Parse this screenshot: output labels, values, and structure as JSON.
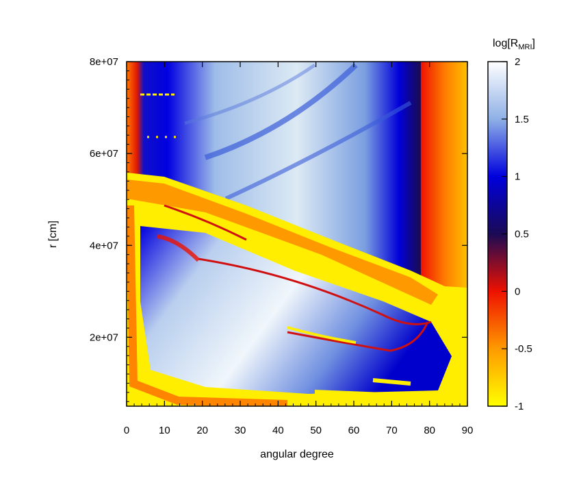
{
  "chart_data": {
    "type": "heatmap",
    "title": "",
    "xlabel": "angular degree",
    "ylabel": "r [cm]",
    "xlim": [
      0,
      90
    ],
    "ylim": [
      5000000,
      80000000
    ],
    "x_ticks": [
      0,
      10,
      20,
      30,
      40,
      50,
      60,
      70,
      80,
      90
    ],
    "x_tick_labels": [
      "0",
      "10",
      "20",
      "30",
      "40",
      "50",
      "60",
      "70",
      "80",
      "90"
    ],
    "y_ticks": [
      20000000,
      40000000,
      60000000,
      80000000
    ],
    "y_tick_labels": [
      "2e+07",
      "4e+07",
      "6e+07",
      "8e+07"
    ],
    "colorbar": {
      "label_main": "log[R",
      "label_sub": "MRI",
      "label_end": "]",
      "range": [
        -1,
        2
      ],
      "ticks": [
        -1,
        -0.5,
        0,
        0.5,
        1,
        1.5,
        2
      ],
      "tick_labels": [
        "-1",
        "-0.5",
        "0",
        "0.5",
        "1",
        "1.5",
        "2"
      ],
      "colormap": [
        {
          "value": -1,
          "color": "#ffff00"
        },
        {
          "value": -0.5,
          "color": "#ff9a00"
        },
        {
          "value": 0,
          "color": "#ee1100"
        },
        {
          "value": 0.5,
          "color": "#1a0a55"
        },
        {
          "value": 1,
          "color": "#0000dd"
        },
        {
          "value": 1.5,
          "color": "#8fb0e6"
        },
        {
          "value": 2,
          "color": "#ffffff"
        }
      ]
    },
    "grid": false
  }
}
